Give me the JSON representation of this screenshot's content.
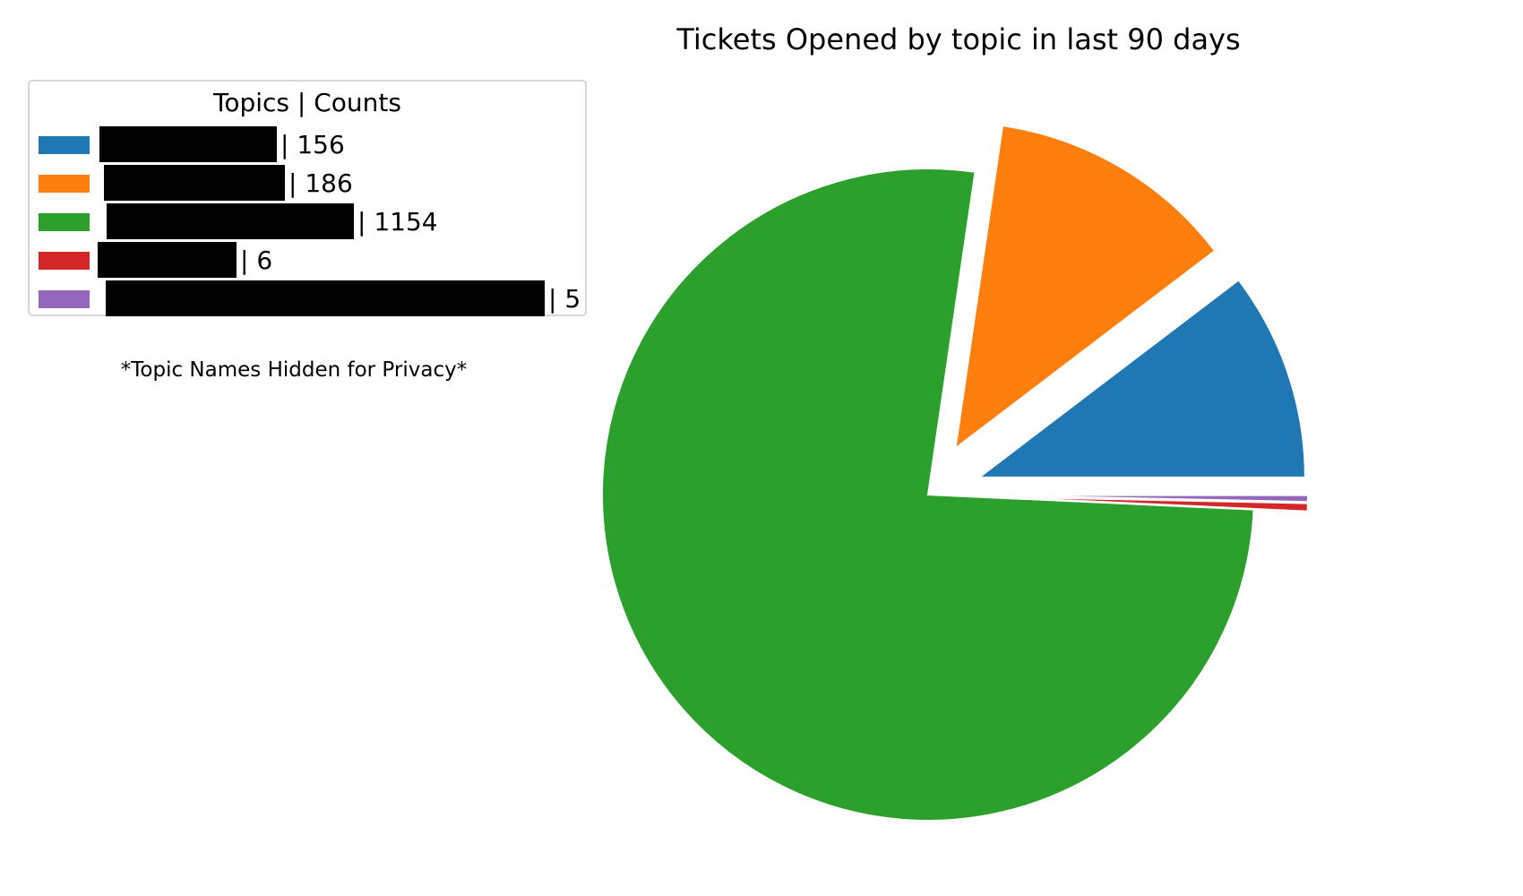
{
  "chart_data": {
    "type": "pie",
    "title": "Tickets Opened by topic in last 90 days",
    "legend": {
      "title": "Topics | Counts",
      "placement": "upper-left"
    },
    "note": "*Topic Names Hidden for Privacy*",
    "slices": [
      {
        "label": "| 156",
        "value": 156,
        "color": "#1f77b4",
        "exploded": true
      },
      {
        "label": "| 186",
        "value": 186,
        "color": "#ff7f0e",
        "exploded": true
      },
      {
        "label": "| 1154",
        "value": 1154,
        "color": "#2ca02c",
        "exploded": false
      },
      {
        "label": "| 6",
        "value": 6,
        "color": "#d62728",
        "exploded": true
      },
      {
        "label": "| 5",
        "value": 5,
        "color": "#9467bd",
        "exploded": true
      }
    ]
  }
}
